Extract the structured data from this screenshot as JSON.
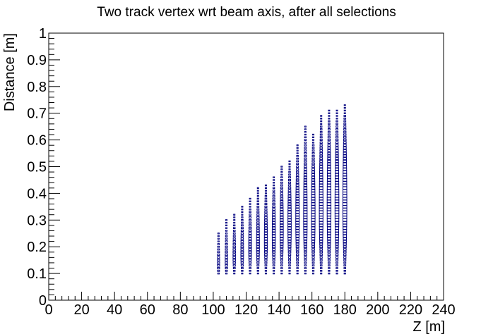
{
  "chart_data": {
    "type": "scatter",
    "style": "box-histogram-2d",
    "title": "Two track vertex wrt beam axis, after all selections",
    "xlabel": "Z [m]",
    "ylabel": "Distance [m]",
    "xlim": [
      0,
      240
    ],
    "ylim": [
      0,
      1
    ],
    "x_ticks": [
      "0",
      "20",
      "40",
      "60",
      "80",
      "100",
      "120",
      "140",
      "160",
      "180",
      "200",
      "220",
      "240"
    ],
    "y_ticks": [
      "0",
      "0.1",
      "0.2",
      "0.3",
      "0.4",
      "0.5",
      "0.6",
      "0.7",
      "0.8",
      "0.9",
      "1"
    ],
    "grid": false,
    "legend": "none",
    "marker_color": "#00007f",
    "bin_width": 2.4,
    "bin_height": 0.01,
    "columns": [
      {
        "x": 103.2,
        "ymin": 0.1,
        "ymax": 0.25,
        "peak": 0.13
      },
      {
        "x": 108.0,
        "ymin": 0.1,
        "ymax": 0.3,
        "peak": 0.14
      },
      {
        "x": 112.8,
        "ymin": 0.1,
        "ymax": 0.32,
        "peak": 0.16
      },
      {
        "x": 117.6,
        "ymin": 0.1,
        "ymax": 0.35,
        "peak": 0.17
      },
      {
        "x": 122.4,
        "ymin": 0.1,
        "ymax": 0.38,
        "peak": 0.19
      },
      {
        "x": 127.2,
        "ymin": 0.1,
        "ymax": 0.42,
        "peak": 0.2
      },
      {
        "x": 132.0,
        "ymin": 0.1,
        "ymax": 0.43,
        "peak": 0.22
      },
      {
        "x": 136.8,
        "ymin": 0.1,
        "ymax": 0.46,
        "peak": 0.24
      },
      {
        "x": 141.6,
        "ymin": 0.1,
        "ymax": 0.5,
        "peak": 0.26
      },
      {
        "x": 146.4,
        "ymin": 0.1,
        "ymax": 0.52,
        "peak": 0.28
      },
      {
        "x": 151.2,
        "ymin": 0.1,
        "ymax": 0.58,
        "peak": 0.3
      },
      {
        "x": 156.0,
        "ymin": 0.1,
        "ymax": 0.65,
        "peak": 0.3
      },
      {
        "x": 160.8,
        "ymin": 0.1,
        "ymax": 0.62,
        "peak": 0.32
      },
      {
        "x": 165.6,
        "ymin": 0.1,
        "ymax": 0.69,
        "peak": 0.33
      },
      {
        "x": 170.4,
        "ymin": 0.1,
        "ymax": 0.71,
        "peak": 0.34
      },
      {
        "x": 175.2,
        "ymin": 0.1,
        "ymax": 0.71,
        "peak": 0.34
      },
      {
        "x": 180.0,
        "ymin": 0.1,
        "ymax": 0.73,
        "peak": 0.35
      }
    ]
  }
}
